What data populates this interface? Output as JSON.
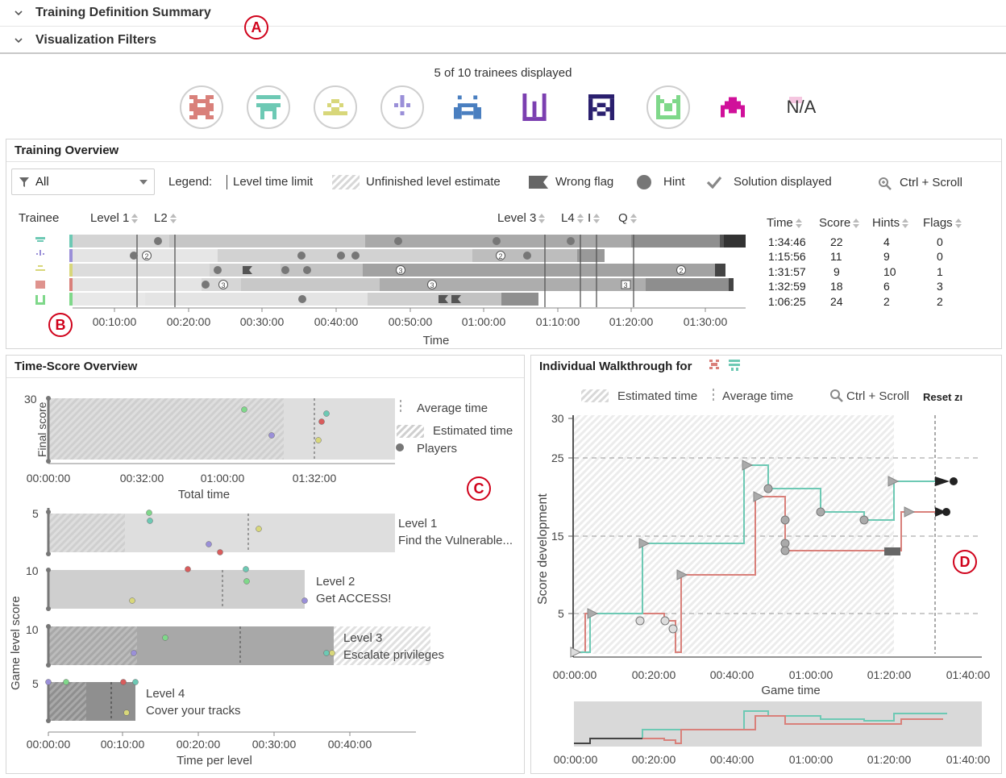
{
  "accordion": {
    "summary_label": "Training Definition Summary",
    "filters_label": "Visualization Filters"
  },
  "markers": {
    "a": "A",
    "b": "B",
    "c": "C",
    "d": "D"
  },
  "trainees": {
    "count_text": "5 of 10 trainees displayed",
    "na_label": "N/A"
  },
  "training_overview": {
    "title": "Training Overview",
    "filter_value": "All",
    "legend_label": "Legend:",
    "legend_items": [
      "Level time limit",
      "Unfinished level estimate",
      "Wrong flag",
      "Hint",
      "Solution displayed"
    ],
    "zoom_hint": "Ctrl + Scroll",
    "col_trainee": "Trainee",
    "col_level1": "Level 1",
    "col_l2": "L2",
    "col_level3": "Level 3",
    "col_l4": "L4",
    "col_i": "I",
    "col_q": "Q",
    "x_ticks": [
      "00:10:00",
      "00:20:00",
      "00:30:00",
      "00:40:00",
      "00:50:00",
      "01:00:00",
      "01:10:00",
      "01:20:00",
      "01:30:00"
    ],
    "x_label": "Time",
    "table_headers": [
      "Time",
      "Score",
      "Hints",
      "Flags"
    ],
    "rows": [
      {
        "time": "1:34:46",
        "score": "22",
        "hints": "4",
        "flags": "0"
      },
      {
        "time": "1:15:56",
        "score": "11",
        "hints": "9",
        "flags": "0"
      },
      {
        "time": "1:31:57",
        "score": "9",
        "hints": "10",
        "flags": "1"
      },
      {
        "time": "1:32:59",
        "score": "18",
        "hints": "6",
        "flags": "3"
      },
      {
        "time": "1:06:25",
        "score": "24",
        "hints": "2",
        "flags": "2"
      }
    ],
    "hint_badges": [
      "2",
      "2",
      "3",
      "3",
      "2",
      "3",
      "3"
    ]
  },
  "time_score": {
    "title": "Time-Score Overview",
    "legend_avg": "Average time",
    "legend_est": "Estimated time",
    "legend_players": "Players",
    "final_ylabel": "Final score",
    "final_ytick": "30",
    "final_xticks": [
      "00:00:00",
      "00:32:00",
      "01:00:00",
      "01:32:00"
    ],
    "final_xlabel": "Total time",
    "game_ylabel": "Game level score",
    "levels": [
      {
        "ytick": "5",
        "name": "Level 1",
        "desc": "Find the Vulnerable..."
      },
      {
        "ytick": "10",
        "name": "Level 2",
        "desc": "Get ACCESS!"
      },
      {
        "ytick": "10",
        "name": "Level 3",
        "desc": "Escalate privileges"
      },
      {
        "ytick": "5",
        "name": "Level 4",
        "desc": "Cover your tracks"
      }
    ],
    "level_xticks": [
      "00:00:00",
      "00:10:00",
      "00:20:00",
      "00:30:00",
      "00:40:00"
    ],
    "level_xlabel": "Time per level"
  },
  "walkthrough": {
    "title": "Individual Walkthrough for",
    "legend_est": "Estimated time",
    "legend_avg": "Average time",
    "zoom_hint": "Ctrl + Scroll",
    "reset_label": "Reset zı",
    "yticks": [
      "30",
      "25",
      "15",
      "5"
    ],
    "ylabel": "Score development",
    "xticks": [
      "00:00:00",
      "00:20:00",
      "00:40:00",
      "01:00:00",
      "01:20:00",
      "01:40:00"
    ],
    "xlabel": "Game time",
    "brush_xticks": [
      "00:00:00",
      "00:20:00",
      "00:40:00",
      "01:00:00",
      "01:20:00",
      "01:40:00"
    ]
  },
  "colors": {
    "red": "#d9807a",
    "teal": "#6dc9b4",
    "yellow": "#d8d77a",
    "purple": "#9a8fd8",
    "blue": "#4a7fc0",
    "violet": "#7b3fb0",
    "navy": "#2a1f6e",
    "green": "#7fd88a",
    "magenta": "#d0109a",
    "accent": "#d0021b"
  }
}
